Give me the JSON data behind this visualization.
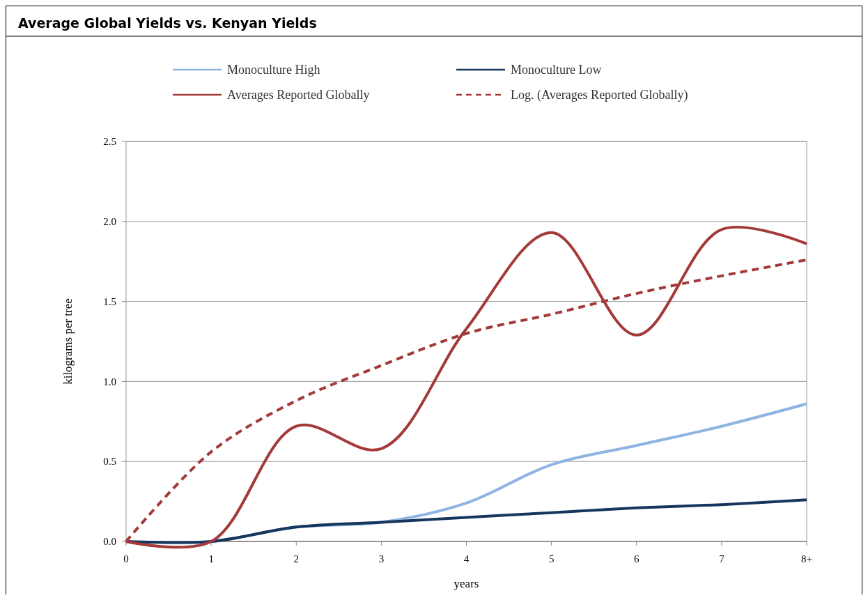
{
  "chart_data": {
    "type": "line",
    "title": "Average Global Yields vs. Kenyan Yields",
    "xlabel": "years",
    "ylabel": "kilograms per tree",
    "categories": [
      "0",
      "1",
      "2",
      "3",
      "4",
      "5",
      "6",
      "7",
      "8+"
    ],
    "series": [
      {
        "name": "Monoculture High",
        "color": "#8db4e2",
        "values": [
          0,
          0,
          0.09,
          0.12,
          0.24,
          0.48,
          0.6,
          0.72,
          0.86
        ]
      },
      {
        "name": "Monoculture Low",
        "color": "#17365d",
        "values": [
          0,
          0,
          0.09,
          0.12,
          0.15,
          0.18,
          0.21,
          0.23,
          0.26
        ]
      },
      {
        "name": "Averages Reported Globally",
        "color": "#a33a3a",
        "values": [
          0,
          0,
          0.72,
          0.58,
          1.33,
          1.93,
          1.29,
          1.95,
          1.86
        ]
      },
      {
        "name": "Log. (Averages Reported Globally)",
        "color": "#a33a3a",
        "line_style": "dashed",
        "values": [
          0,
          0.56,
          0.88,
          1.1,
          1.3,
          1.42,
          1.55,
          1.66,
          1.76
        ]
      }
    ],
    "ylim": [
      0,
      2.5
    ],
    "yticks": [
      {
        "value": 0,
        "label": "0.0"
      },
      {
        "value": 0.5,
        "label": "0.5"
      },
      {
        "value": 1,
        "label": "1.0"
      },
      {
        "value": 1.5,
        "label": "1.5"
      },
      {
        "value": 2,
        "label": "2.0"
      },
      {
        "value": 2.5,
        "label": "2.5"
      }
    ],
    "grid": "y",
    "legend": "top",
    "marker": "none"
  }
}
